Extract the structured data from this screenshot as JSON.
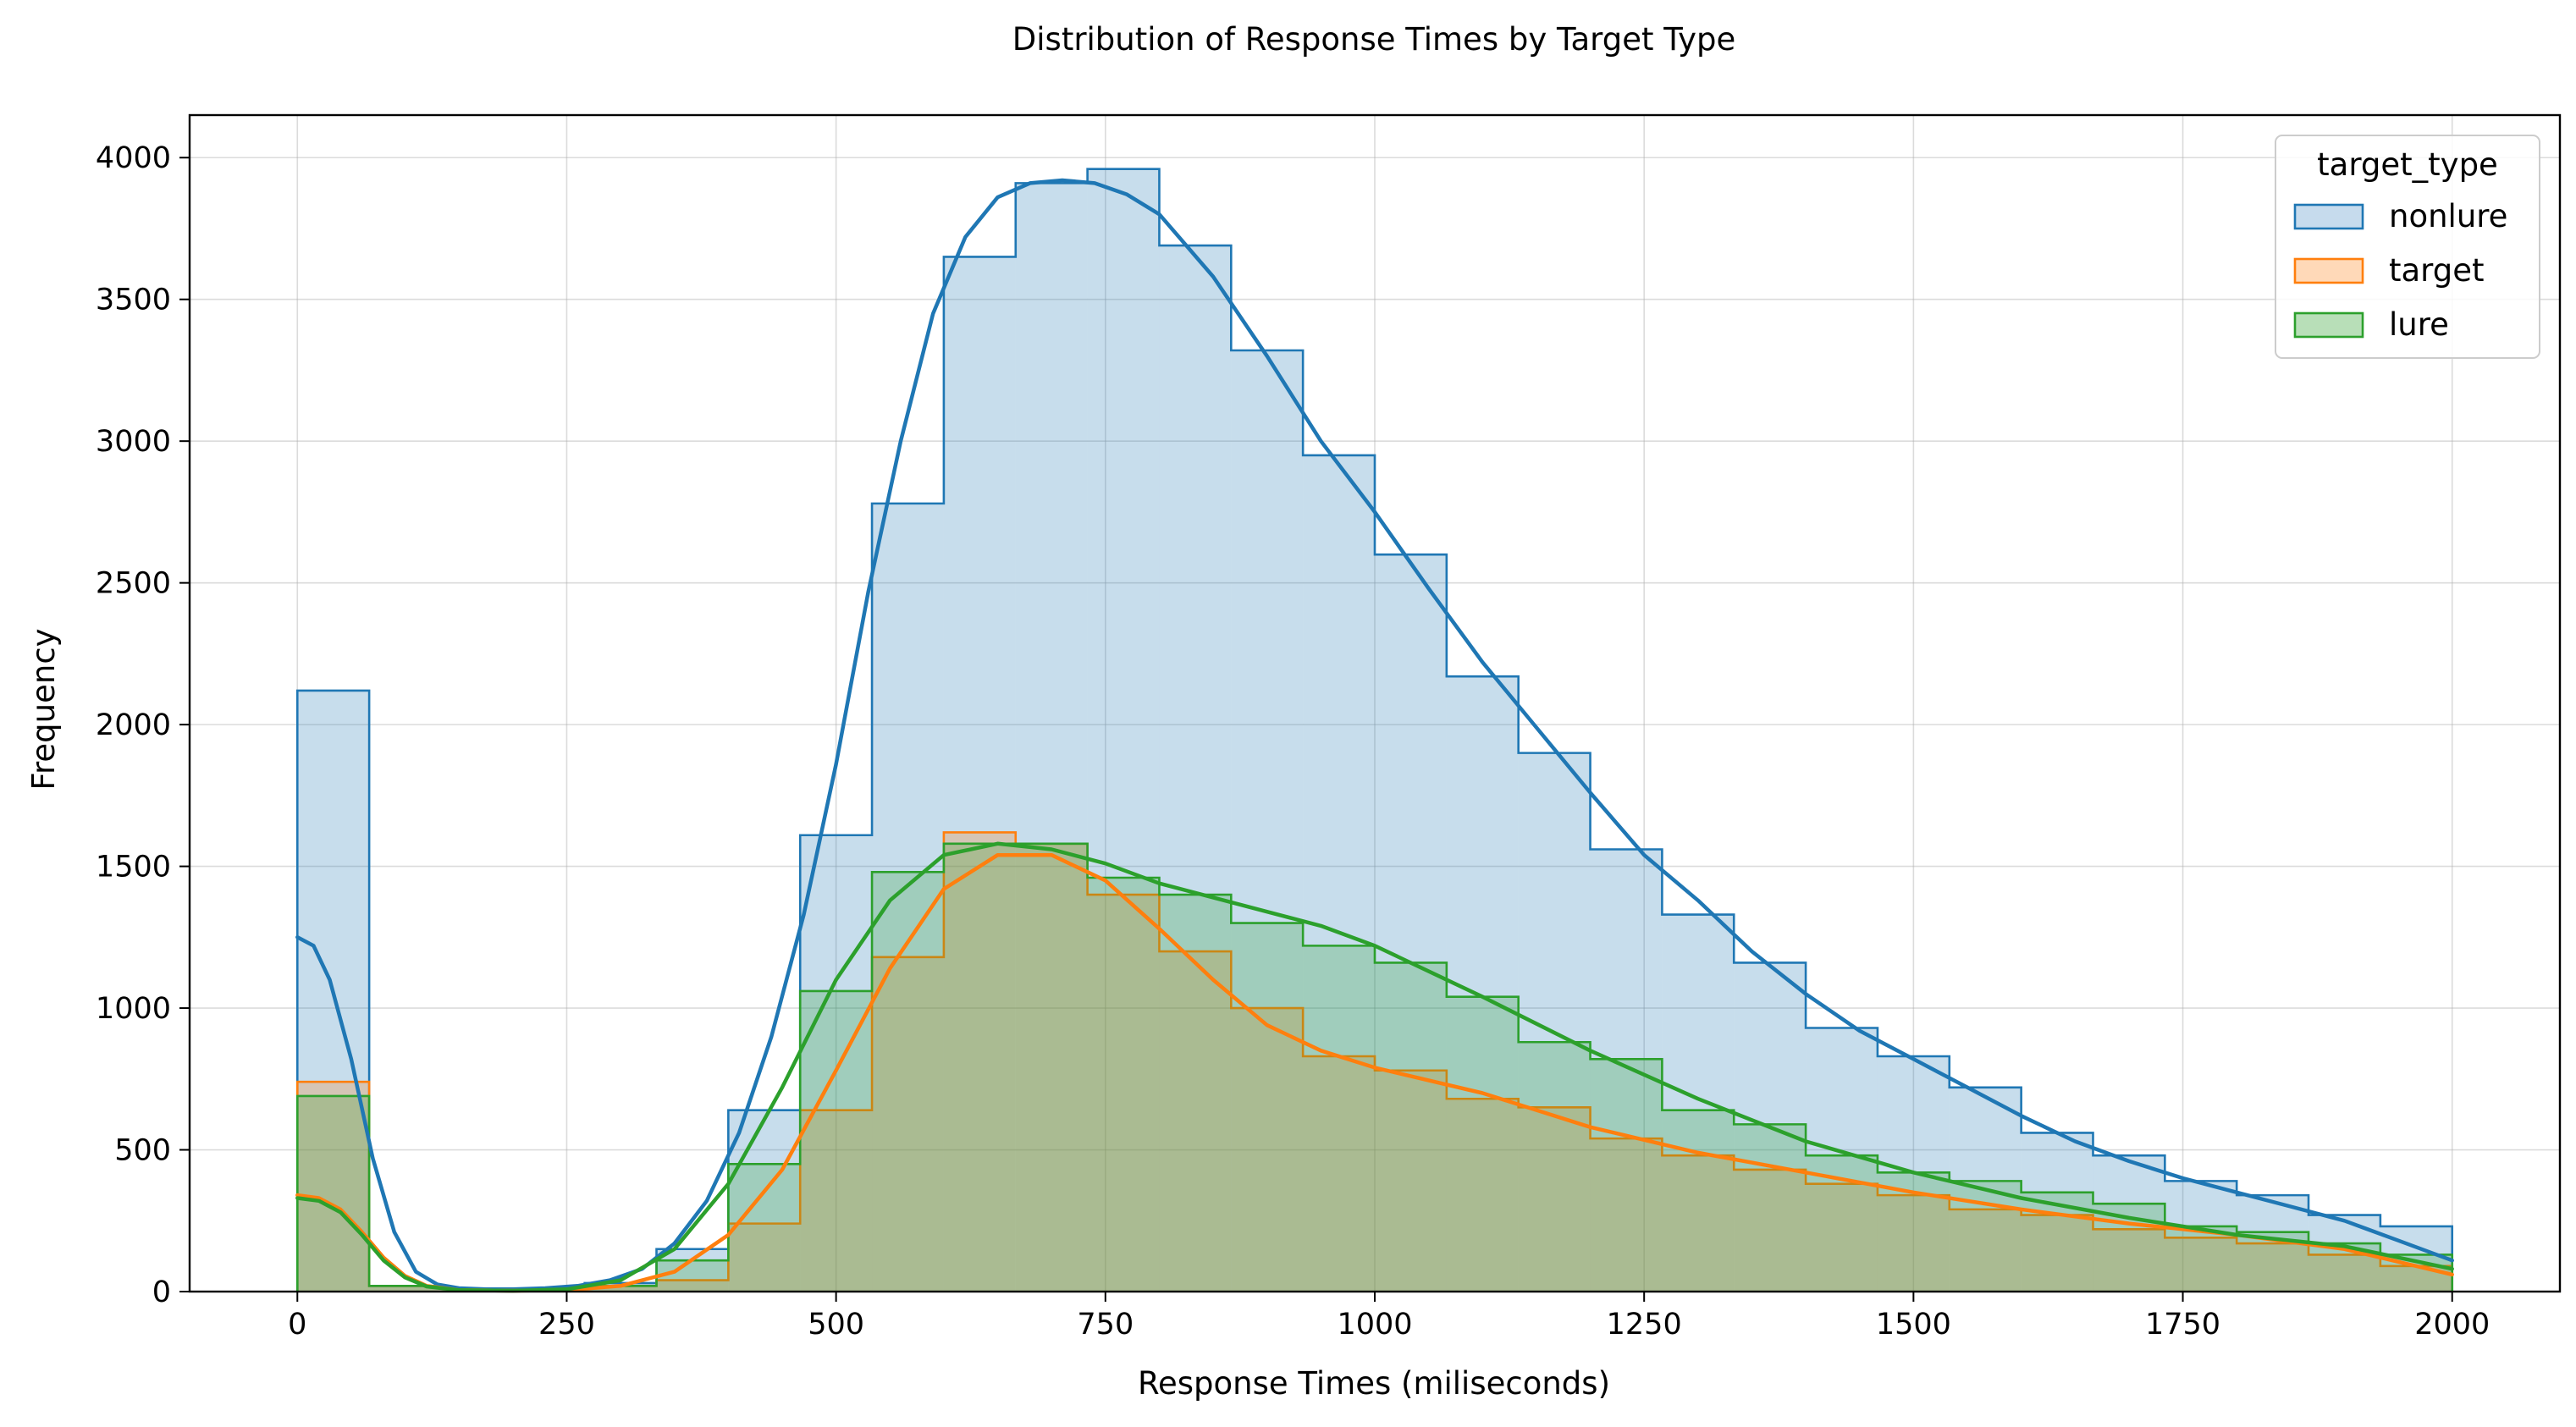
{
  "chart_data": {
    "type": "histogram",
    "title": "Distribution of Response Times by Target Type",
    "xlabel": "Response Times (miliseconds)",
    "ylabel": "Frequency",
    "xlim": [
      -100,
      2100
    ],
    "ylim": [
      0,
      4150
    ],
    "xticks": [
      0,
      250,
      500,
      750,
      1000,
      1250,
      1500,
      1750,
      2000
    ],
    "xtick_labels": [
      "0",
      "250",
      "500",
      "750",
      "1000",
      "1250",
      "1500",
      "1750",
      "2000"
    ],
    "yticks": [
      0,
      500,
      1000,
      1500,
      2000,
      2500,
      3000,
      3500,
      4000
    ],
    "ytick_labels": [
      "0",
      "500",
      "1000",
      "1500",
      "2000",
      "2500",
      "3000",
      "3500",
      "4000"
    ],
    "grid": true,
    "legend": {
      "title": "target_type",
      "position": "top-right"
    },
    "bin_edges": [
      0,
      66.67,
      133.33,
      200,
      266.67,
      333.33,
      400,
      466.67,
      533.33,
      600,
      666.67,
      733.33,
      800,
      866.67,
      933.33,
      1000,
      1066.67,
      1133.33,
      1200,
      1266.67,
      1333.33,
      1400,
      1466.67,
      1533.33,
      1600,
      1666.67,
      1733.33,
      1800,
      1866.67,
      1933.33,
      2000
    ],
    "series": [
      {
        "name": "nonlure",
        "color": "#1f77b4",
        "fill": "#c6dbed",
        "counts": [
          2120,
          20,
          10,
          10,
          30,
          150,
          640,
          1610,
          2780,
          3650,
          3910,
          3960,
          3690,
          3320,
          2950,
          2600,
          2170,
          1900,
          1560,
          1330,
          1160,
          930,
          830,
          720,
          560,
          480,
          390,
          340,
          270,
          230
        ],
        "kde_x": [
          0,
          15,
          30,
          50,
          70,
          90,
          110,
          130,
          150,
          175,
          200,
          230,
          260,
          290,
          320,
          350,
          380,
          410,
          440,
          470,
          500,
          530,
          560,
          590,
          620,
          650,
          680,
          710,
          740,
          770,
          800,
          850,
          900,
          950,
          1000,
          1050,
          1100,
          1150,
          1200,
          1250,
          1300,
          1350,
          1400,
          1450,
          1500,
          1550,
          1600,
          1650,
          1700,
          1750,
          1800,
          1850,
          1900,
          1950,
          2000
        ],
        "kde_y": [
          1250,
          1220,
          1100,
          820,
          470,
          210,
          70,
          25,
          12,
          8,
          8,
          12,
          20,
          40,
          80,
          170,
          320,
          560,
          900,
          1330,
          1860,
          2470,
          3000,
          3450,
          3720,
          3860,
          3910,
          3920,
          3910,
          3870,
          3800,
          3580,
          3300,
          3000,
          2750,
          2480,
          2220,
          1990,
          1760,
          1540,
          1380,
          1200,
          1050,
          920,
          820,
          720,
          620,
          530,
          460,
          400,
          350,
          300,
          250,
          180,
          110
        ]
      },
      {
        "name": "target",
        "color": "#ff7f0e",
        "fill": "#ffd9b8",
        "counts": [
          740,
          20,
          10,
          10,
          20,
          40,
          240,
          640,
          1180,
          1620,
          1580,
          1400,
          1200,
          1000,
          830,
          780,
          680,
          650,
          540,
          480,
          430,
          380,
          340,
          290,
          270,
          220,
          190,
          170,
          130,
          90
        ],
        "kde_x": [
          0,
          20,
          40,
          60,
          80,
          100,
          120,
          150,
          200,
          250,
          300,
          350,
          400,
          450,
          500,
          550,
          600,
          650,
          700,
          750,
          800,
          850,
          900,
          950,
          1000,
          1100,
          1200,
          1300,
          1400,
          1500,
          1600,
          1700,
          1800,
          1900,
          2000
        ],
        "kde_y": [
          340,
          330,
          290,
          210,
          120,
          55,
          20,
          5,
          3,
          5,
          20,
          70,
          200,
          430,
          780,
          1140,
          1420,
          1540,
          1540,
          1450,
          1280,
          1100,
          940,
          850,
          790,
          700,
          580,
          490,
          420,
          350,
          290,
          240,
          200,
          150,
          60
        ]
      },
      {
        "name": "lure",
        "color": "#2ca02c",
        "fill": "#b8dfb8",
        "counts": [
          690,
          20,
          10,
          10,
          20,
          110,
          450,
          1060,
          1480,
          1580,
          1580,
          1460,
          1400,
          1300,
          1220,
          1160,
          1040,
          880,
          820,
          640,
          590,
          480,
          420,
          390,
          350,
          310,
          230,
          210,
          170,
          130
        ],
        "kde_x": [
          0,
          20,
          40,
          60,
          80,
          100,
          120,
          150,
          200,
          250,
          300,
          350,
          400,
          450,
          500,
          550,
          600,
          650,
          700,
          750,
          800,
          850,
          900,
          950,
          1000,
          1100,
          1200,
          1300,
          1400,
          1500,
          1600,
          1700,
          1800,
          1900,
          2000
        ],
        "kde_y": [
          330,
          320,
          280,
          200,
          110,
          50,
          18,
          5,
          3,
          8,
          40,
          150,
          380,
          720,
          1100,
          1380,
          1540,
          1580,
          1560,
          1510,
          1440,
          1390,
          1340,
          1290,
          1220,
          1040,
          850,
          680,
          530,
          420,
          330,
          260,
          200,
          160,
          80
        ]
      }
    ]
  }
}
